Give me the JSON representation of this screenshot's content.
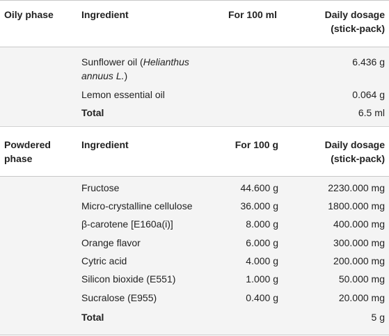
{
  "oily": {
    "phase_label": "Oily phase",
    "headers": {
      "ingredient": "Ingredient",
      "amount": "For 100 ml",
      "dosage_line1": "Daily dosage",
      "dosage_line2": "(stick-pack)"
    },
    "rows": [
      {
        "ingredient_line1_prefix": "Sunflower oil (",
        "ingredient_line1_italic": "Helianthus",
        "ingredient_line2_italic": "annuus L.",
        "ingredient_line2_suffix": ")",
        "amount": "",
        "dosage": "6.436 g"
      },
      {
        "ingredient": "Lemon essential oil",
        "amount": "",
        "dosage": "0.064 g"
      }
    ],
    "total": {
      "label": "Total",
      "dosage": "6.5 ml"
    }
  },
  "powdered": {
    "phase_label_line1": "Powdered",
    "phase_label_line2": "phase",
    "headers": {
      "ingredient": "Ingredient",
      "amount": "For 100 g",
      "dosage_line1": "Daily dosage",
      "dosage_line2": "(stick-pack)"
    },
    "rows": [
      {
        "ingredient": "Fructose",
        "amount": "44.600 g",
        "dosage": "2230.000 mg"
      },
      {
        "ingredient": "Micro-crystalline cellulose",
        "amount": "36.000 g",
        "dosage": "1800.000 mg"
      },
      {
        "ingredient": "β-carotene [E160a(i)]",
        "amount": "8.000 g",
        "dosage": "400.000 mg"
      },
      {
        "ingredient": "Orange flavor",
        "amount": "6.000 g",
        "dosage": "300.000 mg"
      },
      {
        "ingredient": "Cytric acid",
        "amount": "4.000 g",
        "dosage": "200.000 mg"
      },
      {
        "ingredient": "Silicon bioxide (E551)",
        "amount": "1.000 g",
        "dosage": "50.000 mg"
      },
      {
        "ingredient": "Sucralose (E955)",
        "amount": "0.400 g",
        "dosage": "20.000 mg"
      }
    ],
    "total": {
      "label": "Total",
      "dosage": "5 g"
    }
  }
}
